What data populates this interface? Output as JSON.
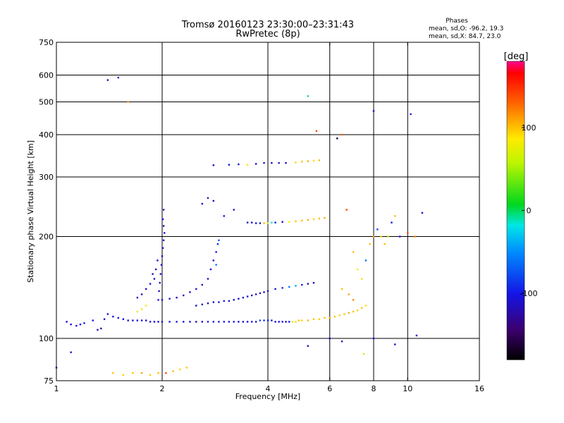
{
  "chart_data": {
    "type": "scatter",
    "title_line1": "Tromsø 20160123 23:30:00–23:31:43",
    "title_line2": "RwPretec (8p)",
    "xlabel": "Frequency [MHz]",
    "ylabel": "Stationary phase Virtual Height [km]",
    "x_scale": "log",
    "y_scale": "log",
    "xlim": [
      1,
      16
    ],
    "ylim": [
      75,
      750
    ],
    "x_ticks": [
      1,
      2,
      4,
      6,
      8,
      10,
      16
    ],
    "x_tick_labels": [
      "1",
      "2",
      "4",
      "6",
      "8",
      "10",
      "16"
    ],
    "y_ticks": [
      75,
      100,
      200,
      300,
      400,
      500,
      600,
      750
    ],
    "y_tick_labels": [
      "75",
      "100",
      "200",
      "300",
      "400",
      "500",
      "600",
      "750"
    ],
    "grid_x": [
      2,
      4,
      6,
      8,
      10
    ],
    "grid_y": [
      100,
      200,
      300,
      400,
      500,
      600
    ],
    "stats": {
      "heading": "Phases",
      "line1": "mean, sd,O:  -96.2, 19.3",
      "line2": "mean, sd,X:  84.7, 23.0"
    },
    "colorbar": {
      "label": "[deg]",
      "range": [
        -180,
        180
      ],
      "ticks": [
        100,
        0,
        -100
      ],
      "tick_labels": [
        "100",
        "0",
        "-100"
      ]
    },
    "series": [
      {
        "points": [
          [
            1.07,
            112,
            -110
          ],
          [
            1.1,
            110,
            -105
          ],
          [
            1.14,
            109,
            -108
          ],
          [
            1.17,
            110,
            -100
          ],
          [
            1.2,
            111,
            -95
          ],
          [
            1.27,
            113,
            -100
          ],
          [
            1.31,
            106,
            -110
          ],
          [
            1.34,
            107,
            -120
          ],
          [
            1.37,
            114,
            -110
          ],
          [
            1.4,
            118,
            -100
          ],
          [
            1.45,
            116,
            -105
          ],
          [
            1.5,
            115,
            -108
          ],
          [
            1.55,
            114,
            -110
          ],
          [
            1.6,
            113,
            -112
          ],
          [
            1.65,
            113,
            -105
          ],
          [
            1.7,
            113,
            -110
          ],
          [
            1.75,
            113,
            -115
          ],
          [
            1.8,
            113,
            -108
          ],
          [
            1.85,
            112,
            -110
          ],
          [
            1.9,
            112,
            -112
          ],
          [
            1.95,
            112,
            -105
          ],
          [
            2.0,
            112,
            -110
          ],
          [
            2.1,
            112,
            -108
          ],
          [
            2.2,
            112,
            -112
          ],
          [
            2.3,
            112,
            -110
          ],
          [
            2.4,
            112,
            -105
          ],
          [
            2.5,
            112,
            -110
          ],
          [
            2.6,
            112,
            -115
          ],
          [
            2.7,
            112,
            -108
          ],
          [
            2.8,
            112,
            -110
          ],
          [
            2.9,
            112,
            -112
          ],
          [
            3.0,
            112,
            -105
          ],
          [
            3.1,
            112,
            -110
          ],
          [
            3.2,
            112,
            -108
          ],
          [
            3.3,
            112,
            -112
          ],
          [
            3.4,
            112,
            -110
          ],
          [
            3.5,
            112,
            -105
          ],
          [
            3.6,
            112,
            -100
          ],
          [
            3.7,
            112,
            -110
          ],
          [
            3.8,
            113,
            -80
          ],
          [
            3.9,
            113,
            -90
          ],
          [
            4.0,
            113,
            -100
          ],
          [
            4.1,
            113,
            -105
          ],
          [
            4.2,
            112,
            -110
          ],
          [
            4.3,
            112,
            -108
          ],
          [
            4.4,
            112,
            -112
          ],
          [
            4.5,
            112,
            -110
          ],
          [
            4.6,
            112,
            -100
          ],
          [
            4.7,
            112,
            70
          ],
          [
            4.8,
            112,
            90
          ],
          [
            4.9,
            113,
            100
          ],
          [
            5.0,
            113,
            95
          ],
          [
            5.2,
            113,
            105
          ],
          [
            5.4,
            114,
            100
          ],
          [
            5.6,
            114,
            95
          ],
          [
            5.8,
            115,
            100
          ],
          [
            6.0,
            115,
            105
          ],
          [
            6.2,
            116,
            100
          ],
          [
            6.4,
            117,
            95
          ],
          [
            6.6,
            118,
            100
          ],
          [
            6.8,
            119,
            105
          ],
          [
            7.0,
            120,
            100
          ],
          [
            7.2,
            121,
            95
          ],
          [
            7.4,
            123,
            100
          ],
          [
            7.6,
            125,
            90
          ]
        ]
      },
      {
        "points": [
          [
            1.95,
            130,
            -105
          ],
          [
            1.96,
            138,
            -110
          ],
          [
            1.97,
            146,
            -108
          ],
          [
            1.98,
            155,
            -105
          ],
          [
            1.99,
            165,
            -110
          ],
          [
            2.0,
            175,
            -112
          ],
          [
            2.01,
            185,
            -105
          ],
          [
            2.02,
            195,
            -110
          ],
          [
            2.03,
            205,
            -100
          ],
          [
            2.02,
            215,
            -110
          ],
          [
            2.01,
            225,
            -105
          ],
          [
            2.02,
            240,
            -110
          ],
          [
            1.9,
            150,
            -110
          ],
          [
            1.85,
            145,
            -105
          ],
          [
            1.8,
            140,
            -108
          ],
          [
            1.75,
            135,
            -112
          ],
          [
            1.7,
            132,
            -110
          ],
          [
            1.92,
            160,
            -105
          ],
          [
            1.88,
            155,
            -110
          ],
          [
            1.94,
            170,
            -108
          ],
          [
            1.8,
            125,
            80
          ],
          [
            1.75,
            122,
            90
          ],
          [
            1.7,
            120,
            70
          ]
        ]
      },
      {
        "points": [
          [
            2.0,
            130,
            -110
          ],
          [
            2.1,
            131,
            -105
          ],
          [
            2.2,
            132,
            -108
          ],
          [
            2.3,
            134,
            -110
          ],
          [
            2.4,
            137,
            -112
          ],
          [
            2.5,
            140,
            -105
          ],
          [
            2.6,
            144,
            -110
          ],
          [
            2.7,
            150,
            -108
          ],
          [
            2.75,
            160,
            -112
          ],
          [
            2.8,
            170,
            -110
          ],
          [
            2.85,
            180,
            -100
          ],
          [
            2.88,
            190,
            -90
          ],
          [
            2.9,
            195,
            -70
          ],
          [
            2.85,
            165,
            -60
          ]
        ]
      },
      {
        "points": [
          [
            2.5,
            125,
            -110
          ],
          [
            2.6,
            126,
            -105
          ],
          [
            2.7,
            127,
            -108
          ],
          [
            2.8,
            128,
            -112
          ],
          [
            2.9,
            128,
            -110
          ],
          [
            3.0,
            129,
            -105
          ],
          [
            3.1,
            129,
            -110
          ],
          [
            3.2,
            130,
            -108
          ],
          [
            3.3,
            131,
            -112
          ],
          [
            3.4,
            132,
            -110
          ],
          [
            3.5,
            133,
            -105
          ],
          [
            3.6,
            134,
            -110
          ],
          [
            3.7,
            135,
            -108
          ],
          [
            3.8,
            136,
            -112
          ],
          [
            3.9,
            137,
            -110
          ],
          [
            4.0,
            138,
            -105
          ],
          [
            4.2,
            140,
            -110
          ],
          [
            4.4,
            141,
            -90
          ],
          [
            4.6,
            142,
            -60
          ],
          [
            4.8,
            143,
            -40
          ],
          [
            5.0,
            144,
            -100
          ],
          [
            5.2,
            145,
            -110
          ],
          [
            5.4,
            146,
            -105
          ]
        ]
      },
      {
        "points": [
          [
            3.5,
            220,
            -120
          ],
          [
            3.6,
            220,
            -110
          ],
          [
            3.7,
            219,
            -105
          ],
          [
            3.8,
            219,
            -100
          ],
          [
            3.9,
            219,
            100
          ],
          [
            4.0,
            219,
            90
          ],
          [
            4.1,
            220,
            -20
          ],
          [
            4.2,
            220,
            -100
          ],
          [
            4.4,
            221,
            -110
          ],
          [
            4.6,
            221,
            80
          ],
          [
            4.8,
            222,
            100
          ],
          [
            5.0,
            223,
            100
          ],
          [
            5.2,
            224,
            105
          ],
          [
            5.4,
            225,
            95
          ],
          [
            5.6,
            226,
            100
          ],
          [
            5.8,
            227,
            105
          ],
          [
            3.0,
            230,
            -105
          ],
          [
            3.2,
            240,
            -110
          ],
          [
            2.6,
            250,
            -105
          ],
          [
            2.7,
            260,
            -108
          ],
          [
            2.8,
            255,
            -110
          ]
        ]
      },
      {
        "points": [
          [
            2.8,
            325,
            -110
          ],
          [
            3.1,
            326,
            -105
          ],
          [
            3.3,
            327,
            -108
          ],
          [
            3.5,
            326,
            90
          ],
          [
            3.7,
            328,
            -110
          ],
          [
            3.9,
            330,
            -108
          ],
          [
            4.1,
            330,
            -112
          ],
          [
            4.3,
            330,
            -100
          ],
          [
            4.5,
            330,
            -110
          ],
          [
            4.8,
            331,
            95
          ],
          [
            5.0,
            333,
            100
          ],
          [
            5.2,
            334,
            105
          ],
          [
            5.4,
            335,
            90
          ],
          [
            5.6,
            336,
            100
          ]
        ]
      },
      {
        "points": [
          [
            1.45,
            79,
            100
          ],
          [
            1.55,
            78,
            95
          ],
          [
            1.65,
            79,
            100
          ],
          [
            1.75,
            79,
            110
          ],
          [
            1.85,
            78,
            95
          ],
          [
            1.95,
            79,
            100
          ],
          [
            2.05,
            79,
            140
          ],
          [
            2.15,
            80,
            100
          ],
          [
            2.25,
            81,
            95
          ],
          [
            2.35,
            82,
            100
          ],
          [
            1.0,
            82,
            -110
          ],
          [
            1.1,
            91,
            -105
          ]
        ]
      },
      {
        "points": [
          [
            7.0,
            180,
            100
          ],
          [
            7.2,
            160,
            80
          ],
          [
            7.4,
            150,
            90
          ],
          [
            7.6,
            170,
            -60
          ],
          [
            7.8,
            190,
            100
          ],
          [
            8.0,
            200,
            110
          ],
          [
            8.2,
            210,
            -80
          ],
          [
            8.4,
            200,
            90
          ],
          [
            8.6,
            190,
            100
          ],
          [
            8.8,
            200,
            60
          ],
          [
            9.0,
            220,
            -110
          ],
          [
            9.2,
            230,
            100
          ],
          [
            9.5,
            200,
            -105
          ],
          [
            10.0,
            205,
            140
          ],
          [
            10.5,
            200,
            120
          ],
          [
            11.0,
            235,
            -110
          ],
          [
            6.5,
            140,
            100
          ],
          [
            6.8,
            135,
            110
          ],
          [
            7.0,
            130,
            120
          ]
        ]
      },
      {
        "points": [
          [
            1.4,
            580,
            -110
          ],
          [
            1.5,
            590,
            -105
          ],
          [
            1.6,
            500,
            110
          ],
          [
            5.2,
            520,
            -5
          ],
          [
            5.5,
            410,
            140
          ],
          [
            6.3,
            390,
            -160
          ],
          [
            6.5,
            400,
            130
          ],
          [
            8.0,
            470,
            -110
          ],
          [
            10.2,
            460,
            -105
          ],
          [
            6.7,
            240,
            140
          ],
          [
            5.2,
            95,
            -110
          ],
          [
            6.0,
            100,
            -105
          ],
          [
            6.5,
            98,
            -110
          ],
          [
            7.5,
            90,
            60
          ],
          [
            8.0,
            100,
            -100
          ],
          [
            9.2,
            96,
            -110
          ],
          [
            10.6,
            102,
            -105
          ]
        ]
      }
    ]
  }
}
